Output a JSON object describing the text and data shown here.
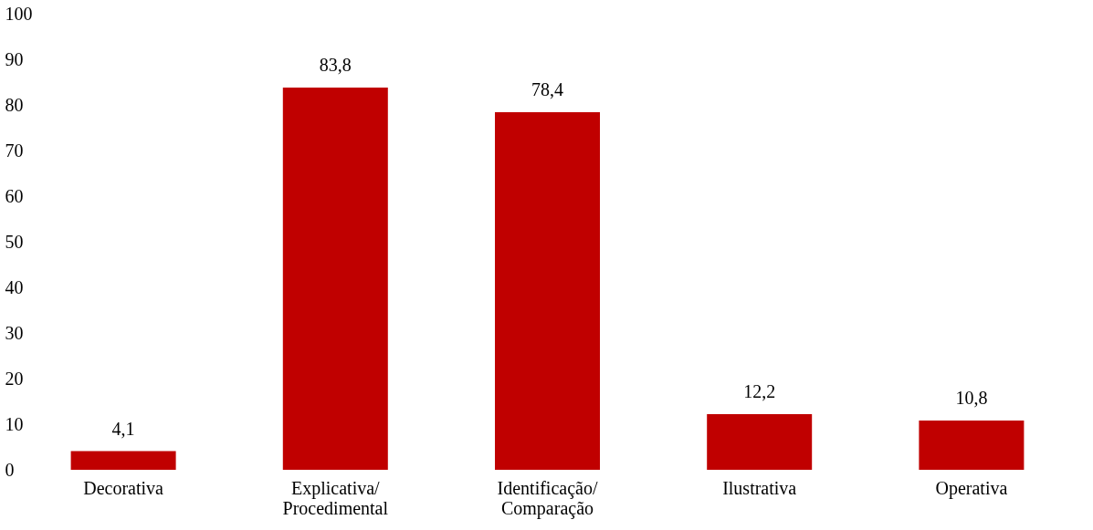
{
  "chart_data": {
    "type": "bar",
    "categories": [
      "Decorativa",
      "Explicativa/Procedimental",
      "Identificação/Comparação",
      "Ilustrativa",
      "Operativa"
    ],
    "values": [
      4.1,
      83.8,
      78.4,
      12.2,
      10.8
    ],
    "value_labels": [
      "4,1",
      "83,8",
      "78,4",
      "12,2",
      "10,8"
    ],
    "color": "#c00000",
    "ylim": [
      0,
      100
    ],
    "yticks": [
      0,
      10,
      20,
      30,
      40,
      50,
      60,
      70,
      80,
      90,
      100
    ],
    "grid": false
  }
}
